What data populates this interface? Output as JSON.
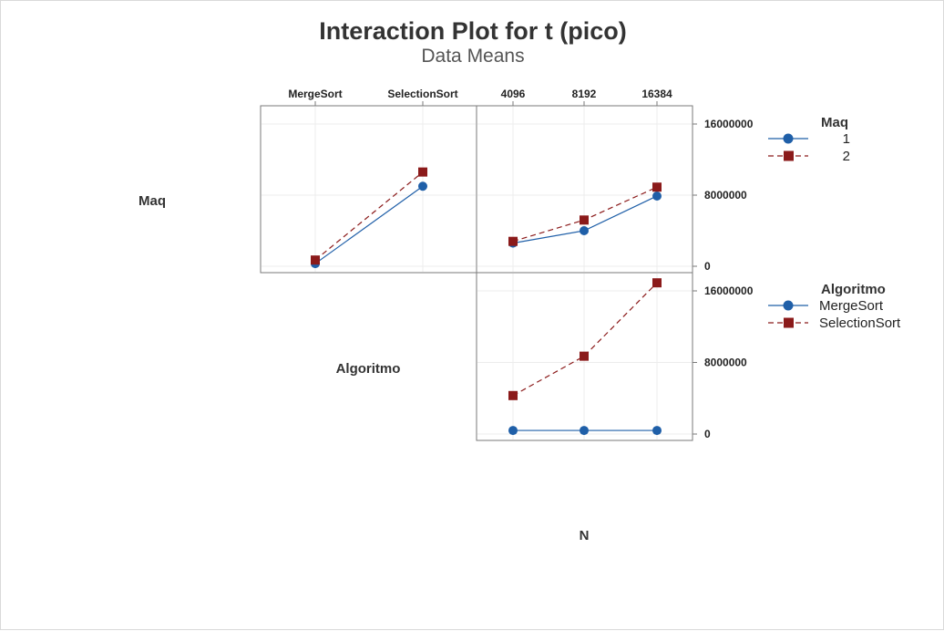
{
  "chart_data": {
    "type": "line",
    "title": "Interaction Plot for t (pico)",
    "subtitle": "Data Means",
    "factors": {
      "row1": "Maq",
      "row2": "Algoritmo",
      "col_bottom": "N"
    },
    "y_ticks": [
      "0",
      "8000000",
      "16000000"
    ],
    "ylim": [
      0,
      16000000
    ],
    "grid": true,
    "legends": [
      {
        "title": "Maq",
        "entries": [
          {
            "label": "1",
            "color": "#1f5fa8",
            "marker": "circle",
            "dash": "solid"
          },
          {
            "label": "2",
            "color": "#8b1a1a",
            "marker": "square",
            "dash": "dashed"
          }
        ],
        "placement": "right-top"
      },
      {
        "title": "Algoritmo",
        "entries": [
          {
            "label": "MergeSort",
            "color": "#1f5fa8",
            "marker": "circle",
            "dash": "solid"
          },
          {
            "label": "SelectionSort",
            "color": "#8b1a1a",
            "marker": "square",
            "dash": "dashed"
          }
        ],
        "placement": "right-middle"
      }
    ],
    "panels": [
      {
        "id": "algoritmo-by-maq",
        "x_categories": [
          "MergeSort",
          "SelectionSort"
        ],
        "series": [
          {
            "name": "1",
            "color": "#1f5fa8",
            "marker": "circle",
            "dash": "solid",
            "values": [
              300000,
              9000000
            ]
          },
          {
            "name": "2",
            "color": "#8b1a1a",
            "marker": "square",
            "dash": "dashed",
            "values": [
              700000,
              10600000
            ]
          }
        ]
      },
      {
        "id": "n-by-maq",
        "x_categories": [
          "4096",
          "8192",
          "16384"
        ],
        "series": [
          {
            "name": "1",
            "color": "#1f5fa8",
            "marker": "circle",
            "dash": "solid",
            "values": [
              2600000,
              4000000,
              7900000
            ]
          },
          {
            "name": "2",
            "color": "#8b1a1a",
            "marker": "square",
            "dash": "dashed",
            "values": [
              2800000,
              5200000,
              8900000
            ]
          }
        ]
      },
      {
        "id": "n-by-algoritmo",
        "x_categories": [
          "4096",
          "8192",
          "16384"
        ],
        "series": [
          {
            "name": "MergeSort",
            "color": "#1f5fa8",
            "marker": "circle",
            "dash": "solid",
            "values": [
              400000,
              400000,
              400000
            ]
          },
          {
            "name": "SelectionSort",
            "color": "#8b1a1a",
            "marker": "square",
            "dash": "dashed",
            "values": [
              4300000,
              8700000,
              16900000
            ]
          }
        ]
      }
    ]
  }
}
